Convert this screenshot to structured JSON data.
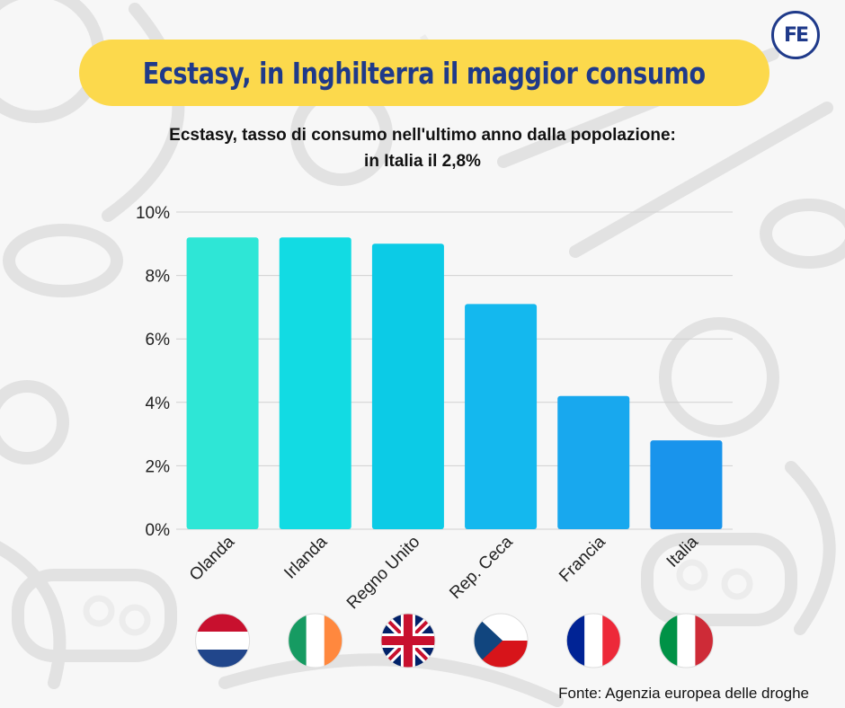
{
  "header": {
    "title": "Ecstasy, in Inghilterra il maggior consumo",
    "logo_text": "FE"
  },
  "chart_data": {
    "type": "bar",
    "title_line1": "Ecstasy, tasso di consumo nell'ultimo anno dalla popolazione:",
    "title_line2": "in Italia il 2,8%",
    "xlabel": "",
    "ylabel": "",
    "categories": [
      "Olanda",
      "Irlanda",
      "Regno Unito",
      "Rep. Ceca",
      "Francia",
      "Italia"
    ],
    "values": [
      9.2,
      9.2,
      9.0,
      7.1,
      4.2,
      2.8
    ],
    "ylim": [
      0,
      10
    ],
    "yticks": [
      0,
      2,
      4,
      6,
      8,
      10
    ],
    "ytick_labels": [
      "0%",
      "2%",
      "4%",
      "6%",
      "8%",
      "10%"
    ],
    "bar_colors": [
      "#2ee6d6",
      "#12dbe3",
      "#0ccbe6",
      "#14b8ee",
      "#18a8ee",
      "#1994ec"
    ],
    "flags": [
      "netherlands-flag",
      "ireland-flag",
      "united-kingdom-flag",
      "czech-republic-flag",
      "france-flag",
      "italy-flag"
    ],
    "grid": true
  },
  "footer": {
    "source": "Fonte: Agenzia europea delle droghe"
  }
}
